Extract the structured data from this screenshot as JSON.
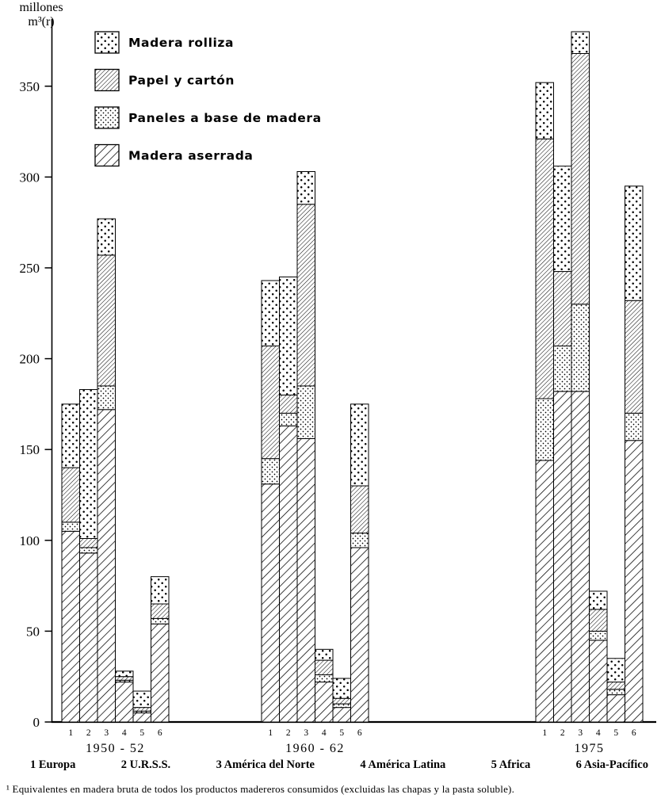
{
  "y_axis": {
    "line1": "millones",
    "line2": "m³(r)",
    "ticks": [
      0,
      50,
      100,
      150,
      200,
      250,
      300,
      350
    ]
  },
  "chart_data": {
    "type": "bar",
    "stacked": true,
    "title": "",
    "ylabel": "millones m³(r)",
    "ylim": [
      0,
      380
    ],
    "yticks": [
      0,
      50,
      100,
      150,
      200,
      250,
      300,
      350
    ],
    "grid": false,
    "legend_position": "top-left",
    "periods": [
      "1950 - 52",
      "1960 - 62",
      "1975"
    ],
    "regions": [
      "1  Europa",
      "2  U.R.S.S.",
      "3  América del Norte",
      "4  América Latina",
      "5  Africa",
      "6  Asia-Pacífico"
    ],
    "bar_numbers": [
      "1",
      "2",
      "3",
      "4",
      "5",
      "6"
    ],
    "legend": [
      {
        "label": "Madera rolliza",
        "pattern": "dots-sparse"
      },
      {
        "label": "Papel y cartón",
        "pattern": "hatch-dense"
      },
      {
        "label": "Paneles a base de madera",
        "pattern": "dots-dense"
      },
      {
        "label": "Madera aserrada",
        "pattern": "hatch"
      }
    ],
    "series": [
      {
        "name": "Madera aserrada",
        "pattern": "hatch",
        "values": [
          [
            105,
            93,
            172,
            22,
            5,
            54
          ],
          [
            131,
            163,
            156,
            22,
            8,
            96
          ],
          [
            144,
            182,
            182,
            45,
            15,
            155
          ]
        ]
      },
      {
        "name": "Paneles a base de madera",
        "pattern": "dots-dense",
        "values": [
          [
            5,
            3,
            13,
            1,
            1,
            3
          ],
          [
            14,
            7,
            29,
            4,
            2,
            8
          ],
          [
            34,
            25,
            48,
            5,
            3,
            15
          ]
        ]
      },
      {
        "name": "Papel y cartón",
        "pattern": "hatch-dense",
        "values": [
          [
            30,
            5,
            72,
            2,
            2,
            8
          ],
          [
            62,
            10,
            100,
            8,
            3,
            26
          ],
          [
            143,
            41,
            138,
            12,
            4,
            62
          ]
        ]
      },
      {
        "name": "Madera rolliza",
        "pattern": "dots-sparse",
        "values": [
          [
            35,
            82,
            20,
            3,
            9,
            15
          ],
          [
            36,
            65,
            18,
            6,
            11,
            45
          ],
          [
            31,
            58,
            12,
            10,
            13,
            63
          ]
        ]
      }
    ],
    "totals": [
      [
        175,
        183,
        277,
        28,
        17,
        80
      ],
      [
        243,
        245,
        303,
        40,
        24,
        175
      ],
      [
        352,
        306,
        380,
        72,
        35,
        295
      ]
    ]
  },
  "footer": {
    "footnote": "¹ Equivalentes en madera bruta de todos los productos madereros consumidos (excluidas las chapas y la pasta soluble)."
  }
}
